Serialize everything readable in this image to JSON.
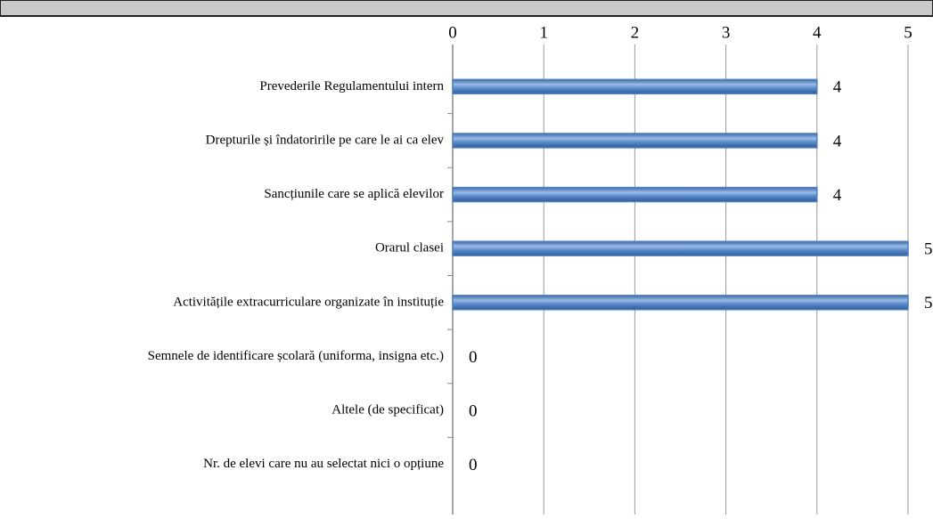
{
  "chart_data": {
    "type": "bar",
    "orientation": "horizontal",
    "categories": [
      "Prevederile Regulamentului intern",
      "Drepturile și îndatoririle pe care le ai ca elev",
      "Sancțiunile care se aplică elevilor",
      "Orarul clasei",
      "Activitățile extracurriculare organizate în instituție",
      "Semnele de identificare școlară (uniforma, insigna etc.)",
      "Altele (de specificat)",
      "Nr. de elevi care nu au selectat nici o opțiune"
    ],
    "values": [
      4,
      4,
      4,
      5,
      5,
      0,
      0,
      0
    ],
    "color": "#4f81bd",
    "xlim": [
      0,
      5
    ],
    "xticks": [
      0,
      1,
      2,
      3,
      4,
      5
    ],
    "grid": true
  }
}
